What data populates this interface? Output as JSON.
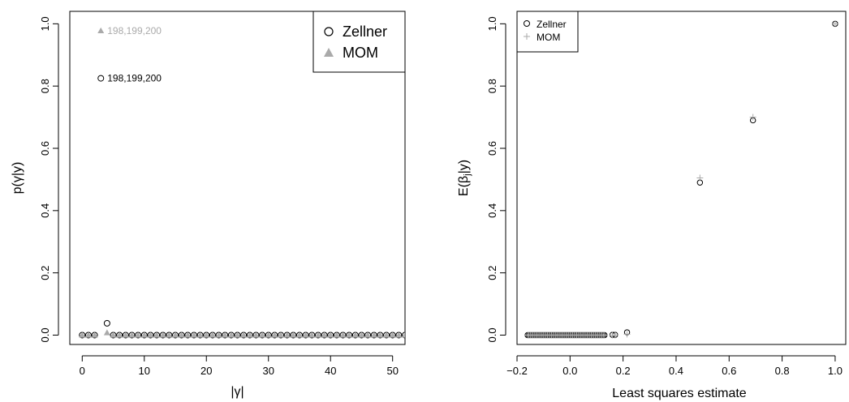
{
  "chart_data": [
    {
      "type": "scatter",
      "xlabel": "|γ|",
      "ylabel": "p(γ|y)",
      "xlim": [
        -2,
        52
      ],
      "ylim": [
        -0.03,
        1.04
      ],
      "x_ticks": [
        0,
        10,
        20,
        30,
        40,
        50
      ],
      "y_ticks": [
        0.0,
        0.2,
        0.4,
        0.6,
        0.8,
        1.0
      ],
      "legend_position": "top-right",
      "series": [
        {
          "name": "Zellner",
          "marker": "open-circle",
          "color": "#000000",
          "x": [
            0,
            1,
            2,
            3,
            4,
            5,
            6,
            7,
            8,
            9,
            10,
            11,
            12,
            13,
            14,
            15,
            16,
            17,
            18,
            19,
            20,
            21,
            22,
            23,
            24,
            25,
            26,
            27,
            28,
            29,
            30,
            31,
            32,
            33,
            34,
            35,
            36,
            37,
            38,
            39,
            40,
            41,
            42,
            43,
            44,
            45,
            46,
            47,
            48,
            49,
            50,
            51,
            52
          ],
          "y": [
            0,
            0,
            0,
            0.825,
            0.038,
            0,
            0,
            0,
            0,
            0,
            0,
            0,
            0,
            0,
            0,
            0,
            0,
            0,
            0,
            0,
            0,
            0,
            0,
            0,
            0,
            0,
            0,
            0,
            0,
            0,
            0,
            0,
            0,
            0,
            0,
            0,
            0,
            0,
            0,
            0,
            0,
            0,
            0,
            0,
            0,
            0,
            0,
            0,
            0,
            0,
            0,
            0,
            0
          ]
        },
        {
          "name": "MOM",
          "marker": "filled-triangle",
          "color": "#aaaaaa",
          "x": [
            0,
            1,
            2,
            3,
            4,
            5,
            6,
            7,
            8,
            9,
            10,
            11,
            12,
            13,
            14,
            15,
            16,
            17,
            18,
            19,
            20,
            21,
            22,
            23,
            24,
            25,
            26,
            27,
            28,
            29,
            30,
            31,
            32,
            33,
            34,
            35,
            36,
            37,
            38,
            39,
            40,
            41,
            42,
            43,
            44,
            45,
            46,
            47,
            48,
            49,
            50,
            51,
            52
          ],
          "y": [
            0,
            0,
            0,
            0.978,
            0.008,
            0,
            0,
            0,
            0,
            0,
            0,
            0,
            0,
            0,
            0,
            0,
            0,
            0,
            0,
            0,
            0,
            0,
            0,
            0,
            0,
            0,
            0,
            0,
            0,
            0,
            0,
            0,
            0,
            0,
            0,
            0,
            0,
            0,
            0,
            0,
            0,
            0,
            0,
            0,
            0,
            0,
            0,
            0,
            0,
            0,
            0,
            0,
            0
          ]
        }
      ],
      "annotations": [
        {
          "text": "198,199,200",
          "x": 3,
          "y": 0.978,
          "color": "#aaaaaa"
        },
        {
          "text": "198,199,200",
          "x": 3,
          "y": 0.825,
          "color": "#000000"
        }
      ]
    },
    {
      "type": "scatter",
      "xlabel": "Least squares estimate",
      "ylabel": "E(βj|y)",
      "xlim": [
        -0.2,
        1.04
      ],
      "ylim": [
        -0.03,
        1.04
      ],
      "x_ticks": [
        -0.2,
        0.0,
        0.2,
        0.4,
        0.6,
        0.8,
        1.0
      ],
      "y_ticks": [
        0.0,
        0.2,
        0.4,
        0.6,
        0.8,
        1.0
      ],
      "legend_position": "top-left",
      "series": [
        {
          "name": "Zellner",
          "marker": "open-circle",
          "color": "#000000",
          "x": [
            -0.16,
            -0.155,
            -0.15,
            -0.145,
            -0.14,
            -0.135,
            -0.13,
            -0.125,
            -0.12,
            -0.115,
            -0.11,
            -0.105,
            -0.1,
            -0.095,
            -0.09,
            -0.085,
            -0.08,
            -0.075,
            -0.07,
            -0.065,
            -0.06,
            -0.055,
            -0.05,
            -0.045,
            -0.04,
            -0.035,
            -0.03,
            -0.025,
            -0.02,
            -0.015,
            -0.01,
            -0.005,
            0.0,
            0.005,
            0.01,
            0.015,
            0.02,
            0.025,
            0.03,
            0.035,
            0.04,
            0.045,
            0.05,
            0.055,
            0.06,
            0.065,
            0.07,
            0.075,
            0.08,
            0.085,
            0.09,
            0.095,
            0.1,
            0.105,
            0.11,
            0.115,
            0.12,
            0.125,
            0.13,
            0.16,
            0.17,
            0.215,
            0.49,
            0.69,
            1.0
          ],
          "y": [
            0,
            0,
            0,
            0,
            0,
            0,
            0,
            0,
            0,
            0,
            0,
            0,
            0,
            0,
            0,
            0,
            0,
            0,
            0,
            0,
            0,
            0,
            0,
            0,
            0,
            0,
            0,
            0,
            0,
            0,
            0,
            0,
            0,
            0,
            0,
            0,
            0,
            0,
            0,
            0,
            0,
            0,
            0,
            0,
            0,
            0,
            0,
            0,
            0,
            0,
            0,
            0,
            0,
            0,
            0,
            0,
            0,
            0,
            0,
            0.001,
            0.001,
            0.009,
            0.49,
            0.69,
            1.0
          ]
        },
        {
          "name": "MOM",
          "marker": "plus",
          "color": "#aaaaaa",
          "x": [
            -0.16,
            -0.155,
            -0.15,
            -0.145,
            -0.14,
            -0.135,
            -0.13,
            -0.125,
            -0.12,
            -0.115,
            -0.11,
            -0.105,
            -0.1,
            -0.095,
            -0.09,
            -0.085,
            -0.08,
            -0.075,
            -0.07,
            -0.065,
            -0.06,
            -0.055,
            -0.05,
            -0.045,
            -0.04,
            -0.035,
            -0.03,
            -0.025,
            -0.02,
            -0.015,
            -0.01,
            -0.005,
            0.0,
            0.005,
            0.01,
            0.015,
            0.02,
            0.025,
            0.03,
            0.035,
            0.04,
            0.045,
            0.05,
            0.055,
            0.06,
            0.065,
            0.07,
            0.075,
            0.08,
            0.085,
            0.09,
            0.095,
            0.1,
            0.105,
            0.11,
            0.115,
            0.12,
            0.125,
            0.13,
            0.16,
            0.17,
            0.215,
            0.49,
            0.69,
            1.0
          ],
          "y": [
            0,
            0,
            0,
            0,
            0,
            0,
            0,
            0,
            0,
            0,
            0,
            0,
            0,
            0,
            0,
            0,
            0,
            0,
            0,
            0,
            0,
            0,
            0,
            0,
            0,
            0,
            0,
            0,
            0,
            0,
            0,
            0,
            0,
            0,
            0,
            0,
            0,
            0,
            0,
            0,
            0,
            0,
            0,
            0,
            0,
            0,
            0,
            0,
            0,
            0,
            0,
            0,
            0,
            0,
            0,
            0,
            0,
            0,
            0,
            0,
            0,
            0.003,
            0.505,
            0.7,
            1.0
          ]
        }
      ],
      "annotations": []
    }
  ]
}
